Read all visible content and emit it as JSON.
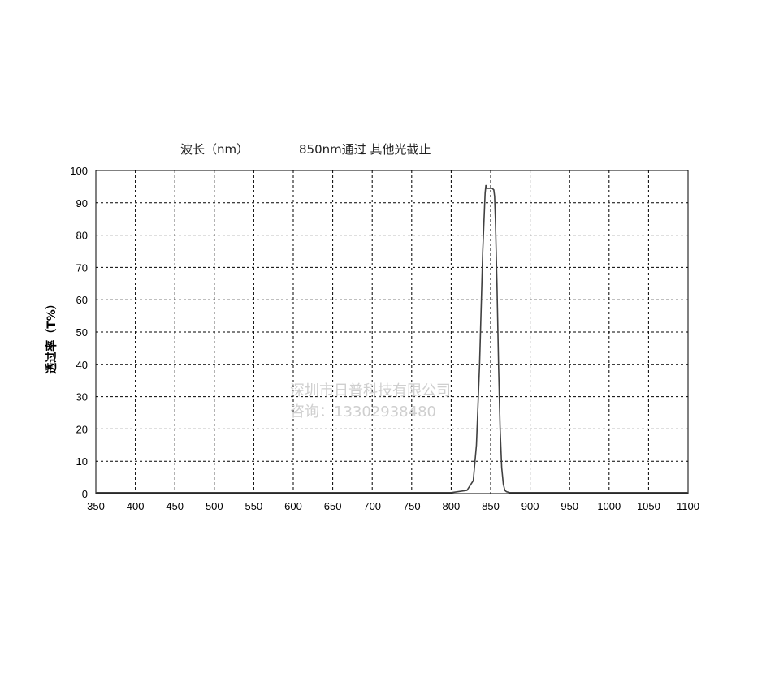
{
  "chart_data": {
    "type": "line",
    "title_left": "波长（nm）",
    "title_right": "850nm通过  其他光截止",
    "xlabel": "",
    "ylabel": "透过率（T%）",
    "xlim": [
      350,
      1100
    ],
    "ylim": [
      0,
      100
    ],
    "x_ticks": [
      350,
      400,
      450,
      500,
      550,
      600,
      650,
      700,
      750,
      800,
      850,
      900,
      950,
      1000,
      1050,
      1100
    ],
    "y_ticks": [
      0,
      10,
      20,
      30,
      40,
      50,
      60,
      70,
      80,
      90,
      100
    ],
    "grid": true,
    "series": [
      {
        "name": "",
        "color": "#404040",
        "x": [
          350,
          700,
          800,
          820,
          828,
          832,
          836,
          840,
          843,
          844,
          845,
          846,
          848,
          850,
          852,
          854,
          855,
          856,
          858,
          860,
          862,
          864,
          866,
          868,
          870,
          874,
          880,
          900,
          1100
        ],
        "y": [
          0.3,
          0.3,
          0.3,
          1,
          4,
          15,
          40,
          75,
          93,
          95.5,
          94.5,
          94.5,
          94.5,
          94.5,
          94.5,
          94,
          92,
          85,
          65,
          40,
          20,
          8,
          3,
          1,
          0.6,
          0.3,
          0.3,
          0.3,
          0.3
        ]
      }
    ]
  },
  "watermark": {
    "line1": "深圳市日普科技有限公司",
    "line2": "咨询：13302938480"
  }
}
